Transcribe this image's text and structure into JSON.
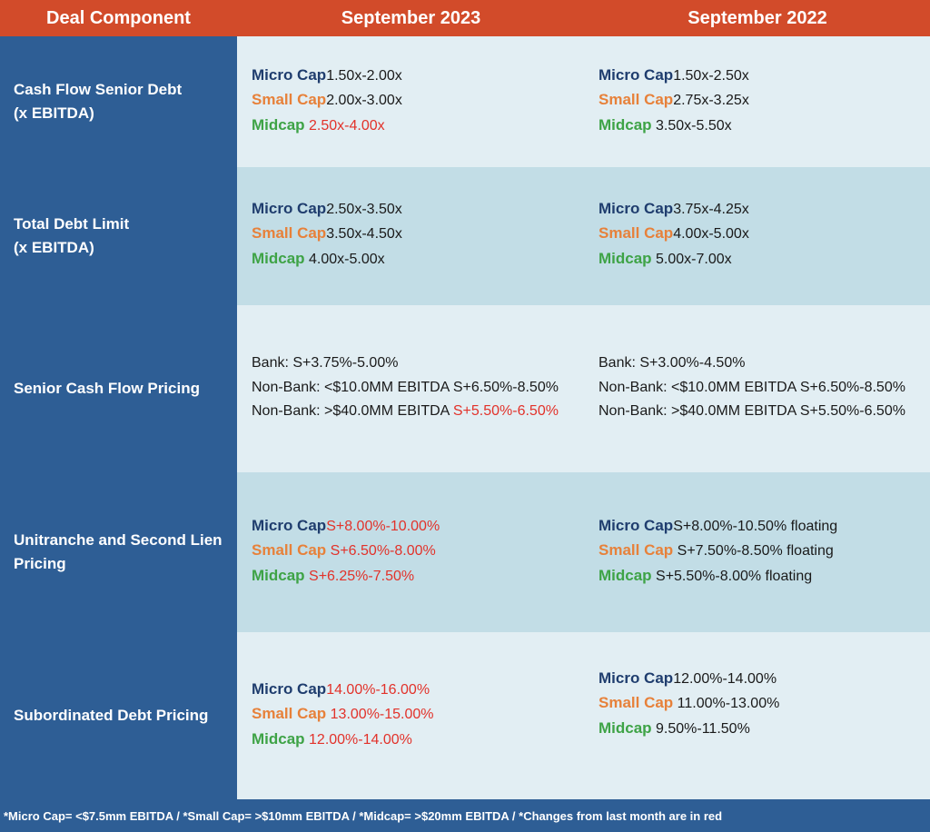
{
  "header": {
    "col1": "Deal Component",
    "col2": "September 2023",
    "col3": "September 2022"
  },
  "rows": [
    {
      "label": [
        "Cash Flow Senior Debt",
        "(x EBITDA)"
      ],
      "sep2023": [
        {
          "tier": "Micro Cap",
          "value": "1.50x-2.00x",
          "changed": false
        },
        {
          "tier": "Small Cap",
          "value": "2.00x-3.00x",
          "changed": false
        },
        {
          "tier": "Midcap",
          "value": "2.50x-4.00x",
          "changed": true
        }
      ],
      "sep2022": [
        {
          "tier": "Micro Cap",
          "value": "1.50x-2.50x"
        },
        {
          "tier": "Small Cap",
          "value": "2.75x-3.25x"
        },
        {
          "tier": "Midcap",
          "value": "3.50x-5.50x"
        }
      ]
    },
    {
      "label": [
        "Total Debt Limit",
        "(x EBITDA)"
      ],
      "sep2023": [
        {
          "tier": "Micro Cap",
          "value": "2.50x-3.50x",
          "changed": false
        },
        {
          "tier": "Small Cap",
          "value": "3.50x-4.50x",
          "changed": false
        },
        {
          "tier": "Midcap",
          "value": "4.00x-5.00x",
          "changed": false
        }
      ],
      "sep2022": [
        {
          "tier": "Micro Cap",
          "value": "3.75x-4.25x"
        },
        {
          "tier": "Small Cap",
          "value": "4.00x-5.00x"
        },
        {
          "tier": "Midcap",
          "value": "5.00x-7.00x"
        }
      ]
    },
    {
      "label": [
        "Senior Cash Flow Pricing"
      ],
      "sep2023": {
        "bank": "Bank: S+3.75%-5.00%",
        "nonbank_small": "Non-Bank: <$10.0MM EBITDA S+6.50%-8.50%",
        "nonbank_large_prefix": "Non-Bank: >$40.0MM EBITDA ",
        "nonbank_large_value": "S+5.50%-6.50%"
      },
      "sep2022": {
        "bank": "Bank: S+3.00%-4.50%",
        "nonbank_small": "Non-Bank: <$10.0MM EBITDA S+6.50%-8.50%",
        "nonbank_large": "Non-Bank: >$40.0MM EBITDA S+5.50%-6.50%"
      }
    },
    {
      "label": [
        "Unitranche and Second Lien",
        "Pricing"
      ],
      "sep2023": [
        {
          "tier": "Micro Cap",
          "value": "S+8.00%-10.00%",
          "changed": true
        },
        {
          "tier": "Small Cap",
          "value": "S+6.50%-8.00%",
          "changed": true
        },
        {
          "tier": "Midcap",
          "value": "S+6.25%-7.50%",
          "changed": true
        }
      ],
      "sep2022": [
        {
          "tier": "Micro Cap",
          "value": "S+8.00%-10.50% floating"
        },
        {
          "tier": "Small Cap",
          "value": "S+7.50%-8.50% floating"
        },
        {
          "tier": "Midcap",
          "value": "S+5.50%-8.00% floating"
        }
      ]
    },
    {
      "label": [
        "Subordinated Debt Pricing"
      ],
      "sep2023": [
        {
          "tier": "Micro Cap",
          "value": "14.00%-16.00%",
          "changed": true
        },
        {
          "tier": "Small Cap",
          "value": "13.00%-15.00%",
          "changed": true
        },
        {
          "tier": "Midcap",
          "value": "12.00%-14.00%",
          "changed": true
        }
      ],
      "sep2022": [
        {
          "tier": "Micro Cap",
          "value": "12.00%-14.00%"
        },
        {
          "tier": "Small Cap",
          "value": "11.00%-13.00%"
        },
        {
          "tier": "Midcap",
          "value": "9.50%-11.50%"
        }
      ]
    }
  ],
  "footer": "*Micro Cap= <$7.5mm EBITDA / *Small Cap= >$10mm EBITDA / *Midcap= >$20mm EBITDA / *Changes from last month are in red",
  "colors": {
    "header_bg": "#d24b2a",
    "label_col_bg": "#2e5e95",
    "band_light": "#e2eef3",
    "band_mid": "#c2dde6",
    "micro_cap": "#1f3d6e",
    "small_cap": "#e7813a",
    "midcap": "#3ea346",
    "changed_red": "#e2322a"
  }
}
